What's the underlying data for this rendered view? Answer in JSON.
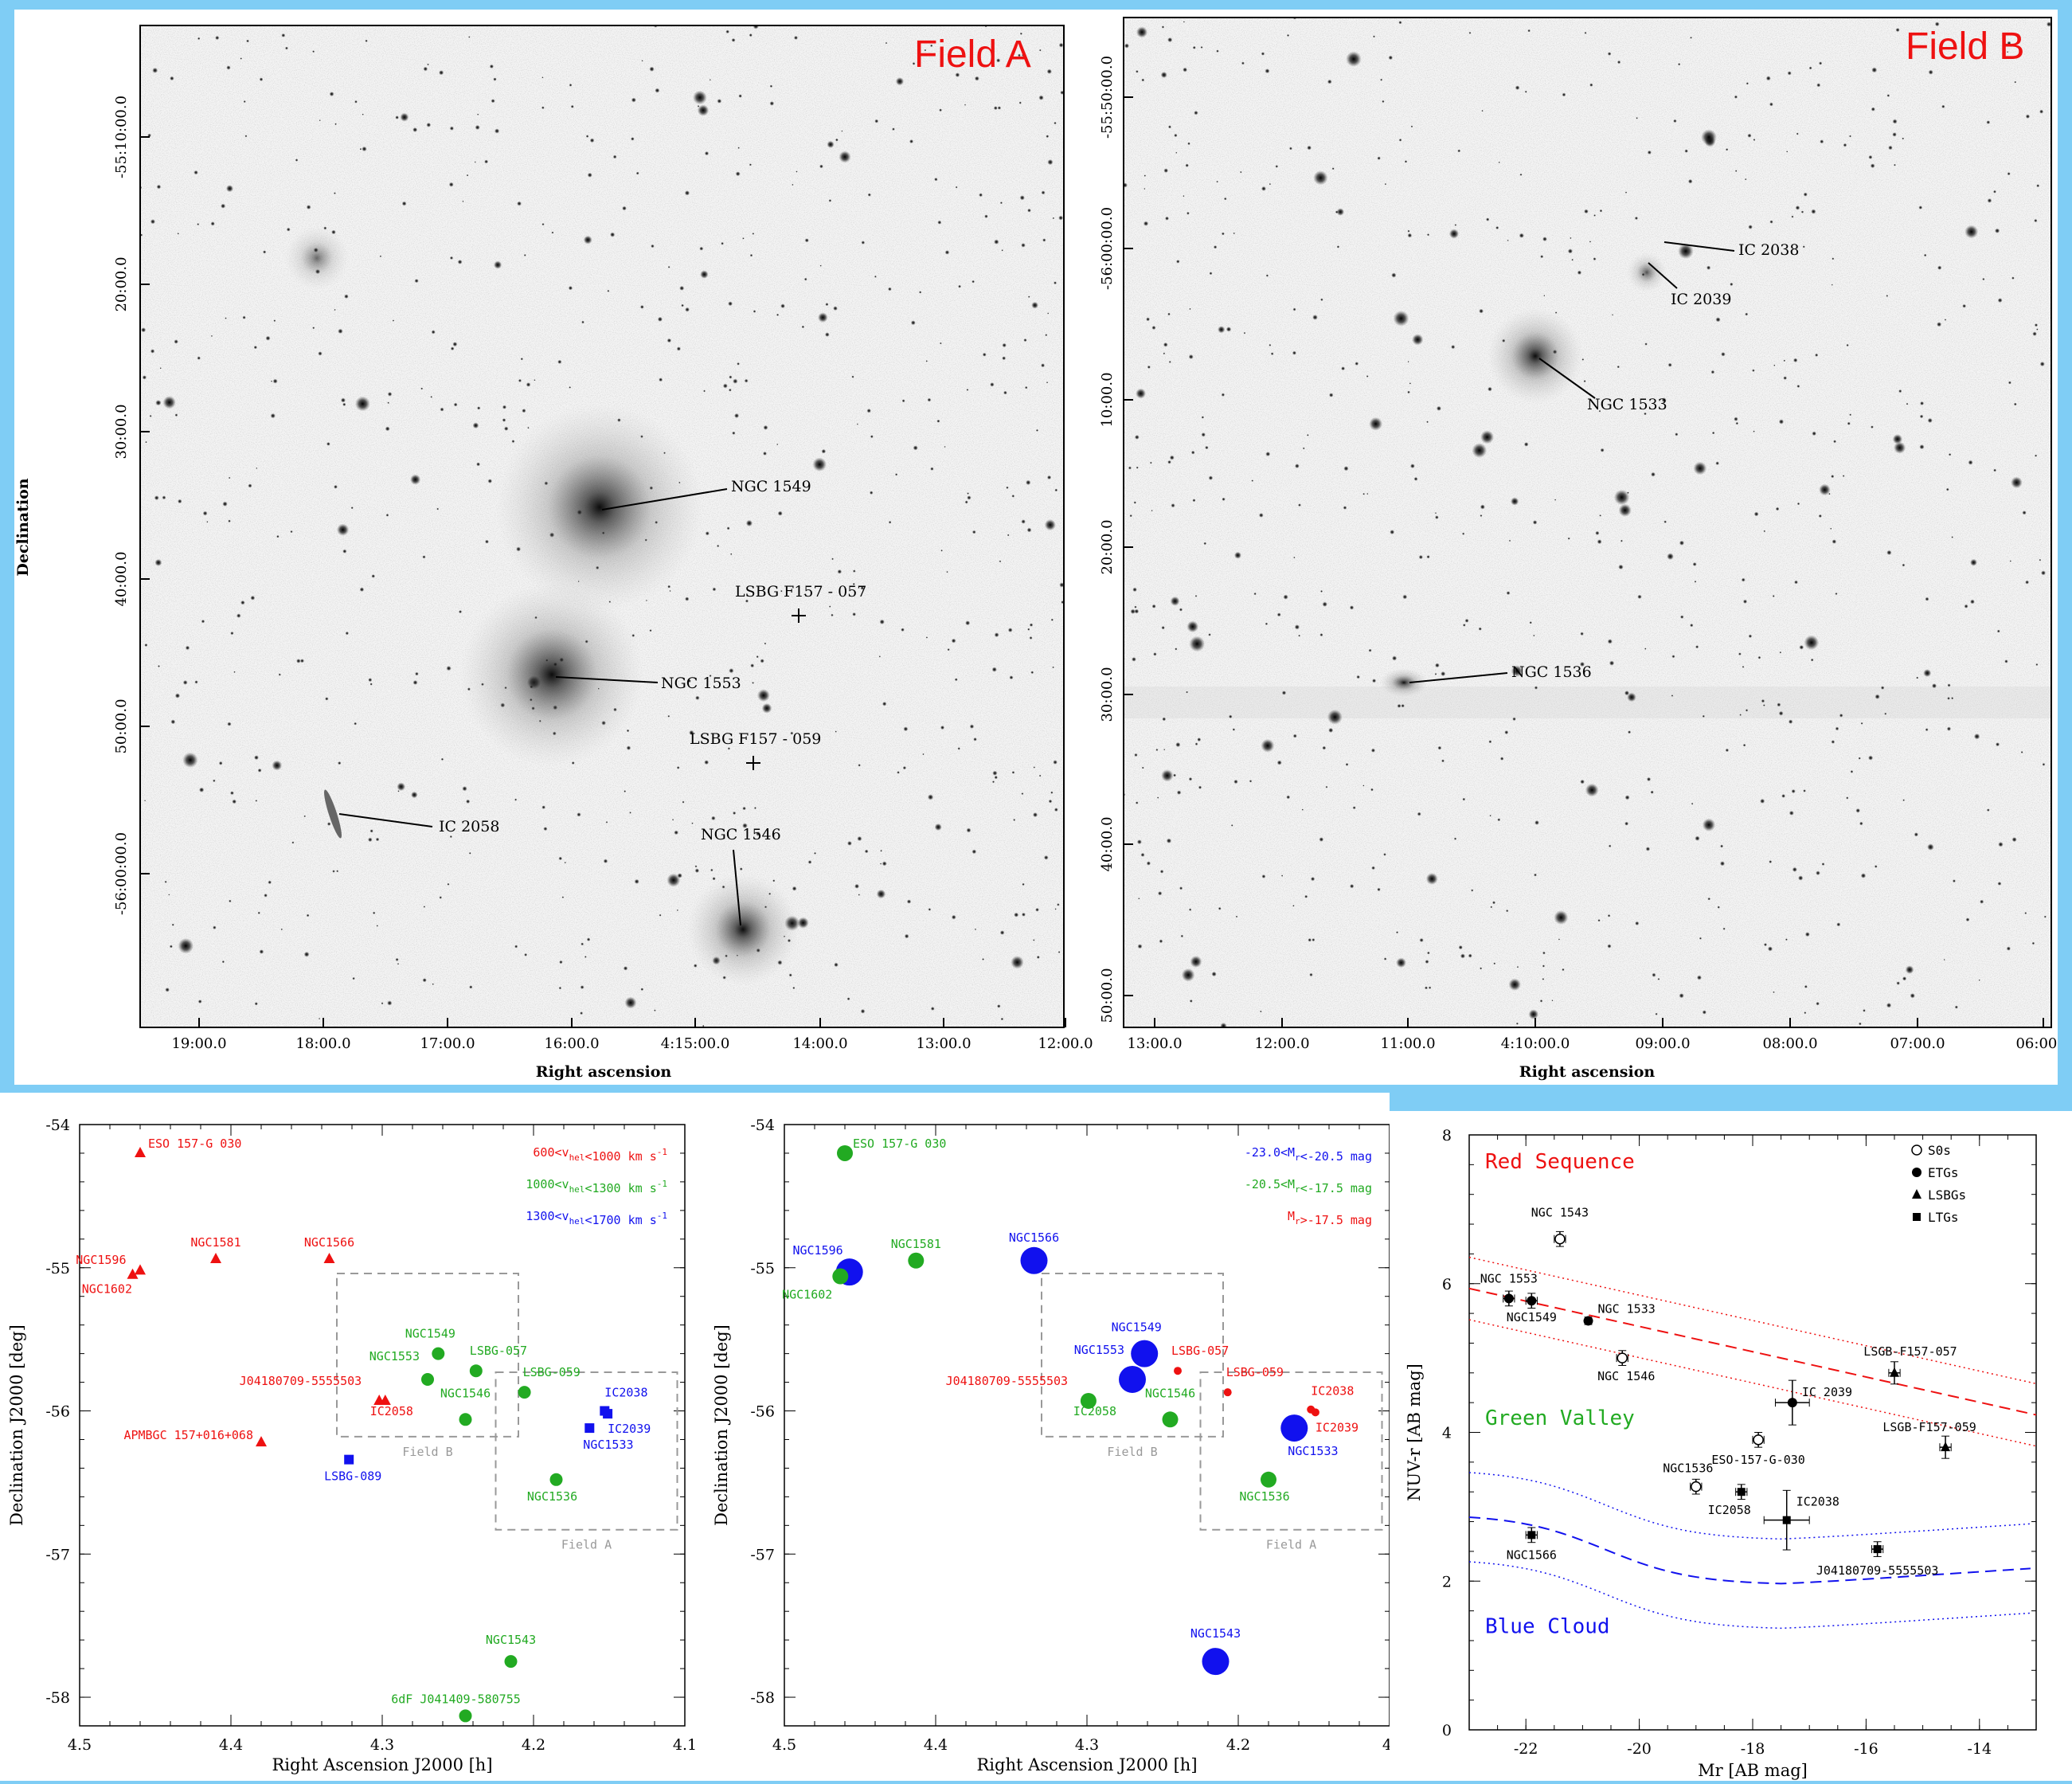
{
  "colors": {
    "red": "#ee1111",
    "green": "#22aa22",
    "blue": "#1111ee",
    "frame": "#7fcdf5",
    "gray": "#999999"
  },
  "fieldA": {
    "title": "Field A",
    "xlabel": "Right ascension",
    "ylabel": "Declination",
    "xticks": [
      "19:00.0",
      "18:00.0",
      "17:00.0",
      "16:00.0",
      "4:15:00.0",
      "14:00.0",
      "13:00.0",
      "12:00.0"
    ],
    "yticks": [
      "-55:10:00.0",
      "20:00.0",
      "30:00.0",
      "40:00.0",
      "50:00.0",
      "-56:00:00.0"
    ],
    "labels": [
      "NGC 1549",
      "LSBG F157 - 057",
      "NGC 1553",
      "LSBG F157 - 059",
      "IC 2058",
      "NGC 1546"
    ]
  },
  "fieldB": {
    "title": "Field B",
    "xlabel": "Right ascension",
    "xticks": [
      "13:00.0",
      "12:00.0",
      "11:00.0",
      "4:10:00.0",
      "09:00.0",
      "08:00.0",
      "07:00.0",
      "06:00.0"
    ],
    "yticks": [
      "-55:50:00.0",
      "-56:00:00.0",
      "10:00.0",
      "20:00.0",
      "30:00.0",
      "40:00.0",
      "50:00.0"
    ],
    "labels": [
      "IC 2038",
      "IC 2039",
      "NGC 1533",
      "NGC 1536"
    ]
  },
  "chart_data": [
    {
      "type": "scatter",
      "xlabel": "Right Ascension J2000 [h]",
      "ylabel": "Declination J2000 [deg]",
      "xlim": [
        4.5,
        4.1
      ],
      "ylim": [
        -58.2,
        -54
      ],
      "xticks": [
        "4.5",
        "4.4",
        "4.3",
        "4.2",
        "4.1"
      ],
      "yticks": [
        "-54",
        "-55",
        "-56",
        "-57",
        "-58"
      ],
      "legend": [
        "600<v_hel<1000 km s^-1",
        "1000<v_hel<1300 km s^-1",
        "1300<v_hel<1700 km s^-1"
      ],
      "boxes": [
        {
          "label": "Field B",
          "x0": 4.33,
          "x1": 4.21,
          "y0": -55.04,
          "y1": -56.18
        },
        {
          "label": "Field A",
          "x0": 4.225,
          "x1": 4.105,
          "y0": -55.73,
          "y1": -56.83
        }
      ],
      "points": [
        {
          "name": "ESO 157-G 030",
          "x": 4.46,
          "y": -54.2,
          "group": "red",
          "marker": "triangle"
        },
        {
          "name": "NGC1596",
          "x": 4.465,
          "y": -55.05,
          "group": "red",
          "marker": "triangle"
        },
        {
          "name": "NGC1602",
          "x": 4.46,
          "y": -55.02,
          "group": "red",
          "marker": "triangle"
        },
        {
          "name": "NGC1581",
          "x": 4.41,
          "y": -54.94,
          "group": "red",
          "marker": "triangle"
        },
        {
          "name": "NGC1566",
          "x": 4.335,
          "y": -54.94,
          "group": "red",
          "marker": "triangle"
        },
        {
          "name": "J04180709-5555503",
          "x": 4.302,
          "y": -55.93,
          "group": "red",
          "marker": "triangle"
        },
        {
          "name": "IC2058",
          "x": 4.298,
          "y": -55.93,
          "group": "red",
          "marker": "triangle"
        },
        {
          "name": "APMBGC 157+016+068",
          "x": 4.38,
          "y": -56.22,
          "group": "red",
          "marker": "triangle"
        },
        {
          "name": "NGC1549",
          "x": 4.263,
          "y": -55.6,
          "group": "green",
          "marker": "circle"
        },
        {
          "name": "NGC1553",
          "x": 4.27,
          "y": -55.78,
          "group": "green",
          "marker": "circle"
        },
        {
          "name": "LSBG-057",
          "x": 4.238,
          "y": -55.72,
          "group": "green",
          "marker": "circle"
        },
        {
          "name": "LSBG-059",
          "x": 4.206,
          "y": -55.87,
          "group": "green",
          "marker": "circle"
        },
        {
          "name": "NGC1546",
          "x": 4.245,
          "y": -56.06,
          "group": "green",
          "marker": "circle"
        },
        {
          "name": "NGC1536",
          "x": 4.185,
          "y": -56.48,
          "group": "green",
          "marker": "circle"
        },
        {
          "name": "NGC1543",
          "x": 4.215,
          "y": -57.75,
          "group": "green",
          "marker": "circle"
        },
        {
          "name": "6dF J041409-580755",
          "x": 4.245,
          "y": -58.13,
          "group": "green",
          "marker": "circle"
        },
        {
          "name": "IC2038",
          "x": 4.153,
          "y": -56.0,
          "group": "blue",
          "marker": "square"
        },
        {
          "name": "IC2039",
          "x": 4.151,
          "y": -56.02,
          "group": "blue",
          "marker": "square"
        },
        {
          "name": "NGC1533",
          "x": 4.163,
          "y": -56.12,
          "group": "blue",
          "marker": "square"
        },
        {
          "name": "LSBG-089",
          "x": 4.322,
          "y": -56.34,
          "group": "blue",
          "marker": "square"
        }
      ]
    },
    {
      "type": "scatter",
      "xlabel": "Right Ascension J2000 [h]",
      "ylabel": "Declination J2000 [deg]",
      "xlim": [
        4.5,
        4.1
      ],
      "ylim": [
        -58.2,
        -54
      ],
      "xticks": [
        "4.5",
        "4.4",
        "4.3",
        "4.2",
        "4.1"
      ],
      "yticks": [
        "-54",
        "-55",
        "-56",
        "-57",
        "-58"
      ],
      "legend": [
        "-23.0<M_r<-20.5 mag",
        "-20.5<M_r<-17.5 mag",
        "M_r>-17.5 mag"
      ],
      "boxes": [
        {
          "label": "Field B",
          "x0": 4.33,
          "x1": 4.21,
          "y0": -55.04,
          "y1": -56.18
        },
        {
          "label": "Field A",
          "x0": 4.225,
          "x1": 4.105,
          "y0": -55.73,
          "y1": -56.83
        }
      ],
      "points": [
        {
          "name": "ESO 157-G 030",
          "x": 4.46,
          "y": -54.2,
          "group": "green",
          "size": "medium"
        },
        {
          "name": "NGC1596",
          "x": 4.457,
          "y": -55.03,
          "group": "blue",
          "size": "large"
        },
        {
          "name": "NGC1602",
          "x": 4.463,
          "y": -55.06,
          "group": "green",
          "size": "medium"
        },
        {
          "name": "NGC1581",
          "x": 4.413,
          "y": -54.95,
          "group": "green",
          "size": "medium"
        },
        {
          "name": "NGC1566",
          "x": 4.335,
          "y": -54.95,
          "group": "blue",
          "size": "large"
        },
        {
          "name": "NGC1549",
          "x": 4.262,
          "y": -55.6,
          "group": "blue",
          "size": "large"
        },
        {
          "name": "NGC1553",
          "x": 4.27,
          "y": -55.78,
          "group": "blue",
          "size": "large"
        },
        {
          "name": "LSBG-057",
          "x": 4.24,
          "y": -55.72,
          "group": "red",
          "size": "small"
        },
        {
          "name": "LSBG-059",
          "x": 4.207,
          "y": -55.87,
          "group": "red",
          "size": "small"
        },
        {
          "name": "J04180709-5555503",
          "x": 4.301,
          "y": -55.93,
          "group": "red",
          "size": "small"
        },
        {
          "name": "IC2058",
          "x": 4.299,
          "y": -55.93,
          "group": "green",
          "size": "medium"
        },
        {
          "name": "NGC1546",
          "x": 4.245,
          "y": -56.06,
          "group": "green",
          "size": "medium"
        },
        {
          "name": "IC2038",
          "x": 4.152,
          "y": -55.99,
          "group": "red",
          "size": "small"
        },
        {
          "name": "IC2039",
          "x": 4.149,
          "y": -56.01,
          "group": "red",
          "size": "small"
        },
        {
          "name": "NGC1533",
          "x": 4.163,
          "y": -56.12,
          "group": "blue",
          "size": "large"
        },
        {
          "name": "NGC1536",
          "x": 4.18,
          "y": -56.48,
          "group": "green",
          "size": "medium"
        },
        {
          "name": "NGC1543",
          "x": 4.215,
          "y": -57.75,
          "group": "blue",
          "size": "large"
        }
      ]
    },
    {
      "type": "scatter",
      "xlabel": "Mr [AB mag]",
      "ylabel": "NUV-r [AB mag]",
      "xlim": [
        -23,
        -13
      ],
      "ylim": [
        0,
        8
      ],
      "xticks": [
        "-22",
        "-20",
        "-18",
        "-16",
        "-14"
      ],
      "yticks": [
        "0",
        "2",
        "4",
        "6",
        "8"
      ],
      "legend": [
        "S0s",
        "ETGs",
        "LSBGs",
        "LTGs"
      ],
      "regions": [
        "Red Sequence",
        "Green Valley",
        "Blue Cloud"
      ],
      "points": [
        {
          "name": "NGC 1543",
          "x": -21.4,
          "y": 6.6,
          "xerr": 0.1,
          "yerr": 0.1,
          "marker": "open-circle"
        },
        {
          "name": "NGC 1553",
          "x": -22.3,
          "y": 5.8,
          "xerr": 0.1,
          "yerr": 0.1,
          "marker": "filled-circle"
        },
        {
          "name": "NGC1549",
          "x": -21.9,
          "y": 5.77,
          "xerr": 0.1,
          "yerr": 0.1,
          "marker": "filled-circle"
        },
        {
          "name": "NGC 1533",
          "x": -20.9,
          "y": 5.5,
          "xerr": 0.05,
          "yerr": 0.05,
          "marker": "filled-circle"
        },
        {
          "name": "NGC 1546",
          "x": -20.3,
          "y": 5.0,
          "xerr": 0.1,
          "yerr": 0.1,
          "marker": "open-circle"
        },
        {
          "name": "IC 2039",
          "x": -17.3,
          "y": 4.4,
          "xerr": 0.3,
          "yerr": 0.3,
          "marker": "filled-circle"
        },
        {
          "name": "LSGB-F157-057",
          "x": -15.5,
          "y": 4.8,
          "xerr": 0.1,
          "yerr": 0.15,
          "marker": "triangle"
        },
        {
          "name": "LSGB-F157-059",
          "x": -14.6,
          "y": 3.8,
          "xerr": 0.1,
          "yerr": 0.15,
          "marker": "triangle"
        },
        {
          "name": "ESO-157-G-030",
          "x": -17.9,
          "y": 3.9,
          "xerr": 0.1,
          "yerr": 0.1,
          "marker": "open-circle"
        },
        {
          "name": "NGC1536",
          "x": -19.0,
          "y": 3.27,
          "xerr": 0.1,
          "yerr": 0.1,
          "marker": "open-circle"
        },
        {
          "name": "IC2058",
          "x": -18.2,
          "y": 3.2,
          "xerr": 0.1,
          "yerr": 0.1,
          "marker": "square"
        },
        {
          "name": "IC2038",
          "x": -17.4,
          "y": 2.82,
          "xerr": 0.4,
          "yerr": 0.4,
          "marker": "square"
        },
        {
          "name": "NGC1566",
          "x": -21.9,
          "y": 2.62,
          "xerr": 0.1,
          "yerr": 0.1,
          "marker": "square"
        },
        {
          "name": "J04180709-5555503",
          "x": -15.8,
          "y": 2.43,
          "xerr": 0.1,
          "yerr": 0.1,
          "marker": "square"
        }
      ]
    }
  ]
}
